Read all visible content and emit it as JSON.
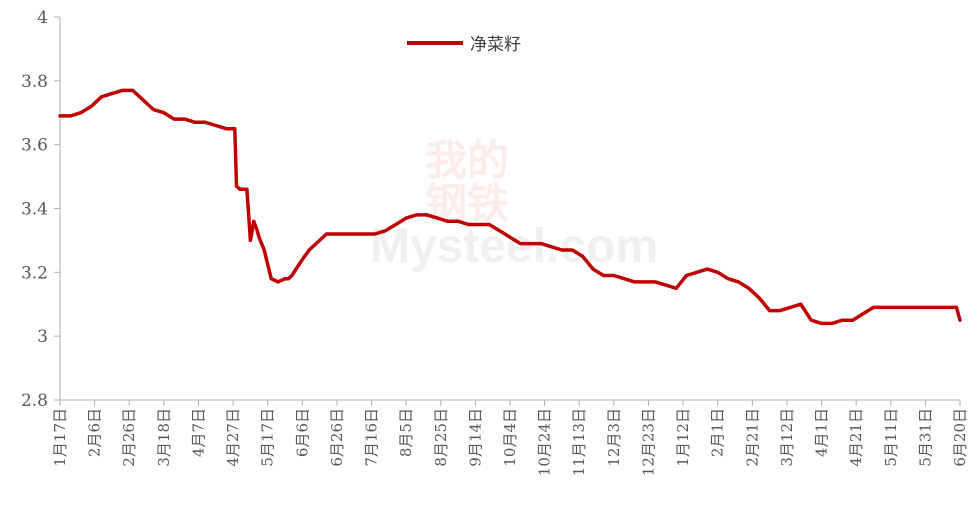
{
  "chart_data": {
    "type": "line",
    "title": "",
    "xlabel": "",
    "ylabel": "",
    "ylim": [
      2.8,
      4.0
    ],
    "yticks": [
      "2.8",
      "3",
      "3.2",
      "3.4",
      "3.6",
      "3.8",
      "4"
    ],
    "grid": false,
    "legend_position": "top-center",
    "categories": [
      "1月17日",
      "2月6日",
      "2月26日",
      "3月18日",
      "4月7日",
      "4月27日",
      "5月17日",
      "6月6日",
      "6月26日",
      "7月16日",
      "8月5日",
      "8月25日",
      "9月14日",
      "10月4日",
      "10月24日",
      "11月13日",
      "12月3日",
      "12月23日",
      "1月12日",
      "2月1日",
      "2月21日",
      "3月12日",
      "4月1日",
      "4月21日",
      "5月11日",
      "5月31日",
      "6月20日"
    ],
    "series": [
      {
        "name": "净菜籽",
        "color": "#c00000",
        "x": [
          0,
          0.3,
          0.6,
          0.9,
          1.2,
          1.5,
          1.8,
          2.1,
          2.4,
          2.7,
          3.0,
          3.3,
          3.6,
          3.9,
          4.2,
          4.5,
          4.8,
          5.05,
          5.1,
          5.2,
          5.4,
          5.5,
          5.6,
          5.7,
          5.75,
          5.9,
          6.1,
          6.3,
          6.5,
          6.6,
          6.7,
          7.0,
          7.2,
          7.5,
          7.7,
          7.9,
          8.1,
          8.3,
          8.5,
          8.8,
          9.1,
          9.4,
          9.7,
          10.0,
          10.3,
          10.6,
          10.9,
          11.2,
          11.5,
          11.8,
          12.1,
          12.4,
          12.7,
          13.0,
          13.3,
          13.6,
          13.9,
          14.2,
          14.5,
          14.8,
          15.1,
          15.4,
          15.7,
          16.0,
          16.3,
          16.6,
          16.9,
          17.2,
          17.5,
          17.8,
          18.1,
          18.4,
          18.7,
          19.0,
          19.3,
          19.6,
          19.9,
          20.2,
          20.5,
          20.8,
          21.1,
          21.4,
          21.7,
          22.0,
          22.3,
          22.6,
          22.9,
          23.2,
          23.5,
          23.8,
          24.1,
          24.4,
          24.7,
          25.0,
          25.3,
          25.6,
          25.9,
          26.0
        ],
        "values": [
          3.69,
          3.69,
          3.7,
          3.72,
          3.75,
          3.76,
          3.77,
          3.77,
          3.74,
          3.71,
          3.7,
          3.68,
          3.68,
          3.67,
          3.67,
          3.66,
          3.65,
          3.65,
          3.47,
          3.46,
          3.46,
          3.3,
          3.36,
          3.33,
          3.31,
          3.27,
          3.18,
          3.17,
          3.18,
          3.18,
          3.19,
          3.24,
          3.27,
          3.3,
          3.32,
          3.32,
          3.32,
          3.32,
          3.32,
          3.32,
          3.32,
          3.33,
          3.35,
          3.37,
          3.38,
          3.38,
          3.37,
          3.36,
          3.36,
          3.35,
          3.35,
          3.35,
          3.33,
          3.31,
          3.29,
          3.29,
          3.29,
          3.28,
          3.27,
          3.27,
          3.25,
          3.21,
          3.19,
          3.19,
          3.18,
          3.17,
          3.17,
          3.17,
          3.16,
          3.15,
          3.19,
          3.2,
          3.21,
          3.2,
          3.18,
          3.17,
          3.15,
          3.12,
          3.08,
          3.08,
          3.09,
          3.1,
          3.05,
          3.04,
          3.04,
          3.05,
          3.05,
          3.07,
          3.09,
          3.09,
          3.09,
          3.09,
          3.09,
          3.09,
          3.09,
          3.09,
          3.09,
          3.05
        ]
      }
    ]
  },
  "watermark": {
    "cn_top": "我的",
    "cn_bottom": "钢铁",
    "en": "Mysteel.com"
  }
}
